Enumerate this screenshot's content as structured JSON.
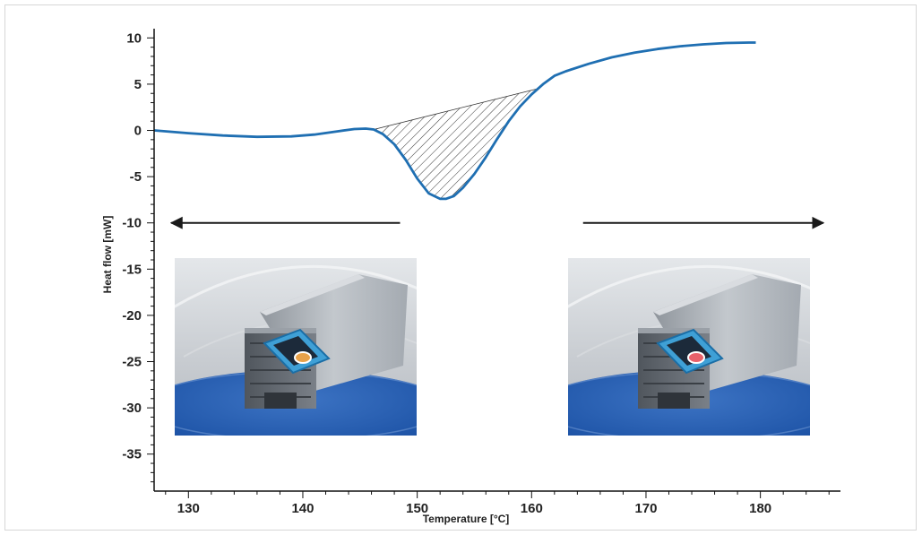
{
  "chart_data": {
    "type": "line",
    "title": "",
    "xlabel": "Temperature [°C]",
    "ylabel": "Heat flow [mW]",
    "xlim": [
      127,
      187
    ],
    "ylim": [
      -39,
      11
    ],
    "x_ticks": [
      130,
      140,
      150,
      160,
      170,
      180
    ],
    "y_ticks": [
      10,
      5,
      0,
      -5,
      -10,
      -15,
      -20,
      -25,
      -30,
      -35
    ],
    "series": [
      {
        "color": "#1f6fb2",
        "x": [
          127,
          130,
          133,
          136,
          139,
          141,
          143,
          144.5,
          145.5,
          146.2,
          147,
          148,
          149,
          150,
          151,
          152,
          152.5,
          153.2,
          154,
          155,
          156,
          157,
          158,
          159,
          160,
          161,
          162,
          163,
          165,
          167,
          169,
          171,
          173,
          175,
          177,
          179,
          179.6
        ],
        "values": [
          0,
          -0.3,
          -0.55,
          -0.7,
          -0.65,
          -0.45,
          -0.1,
          0.15,
          0.2,
          0.1,
          -0.4,
          -1.5,
          -3.2,
          -5.2,
          -6.8,
          -7.4,
          -7.4,
          -7.1,
          -6.2,
          -4.7,
          -2.9,
          -0.9,
          1.0,
          2.6,
          3.9,
          5.0,
          5.9,
          6.4,
          7.2,
          7.9,
          8.4,
          8.8,
          9.1,
          9.3,
          9.45,
          9.5,
          9.5
        ]
      }
    ],
    "shaded_region": {
      "pattern": "hatched",
      "baseline_start": [
        146.2,
        0.1
      ],
      "baseline_end": [
        160.5,
        4.5
      ]
    },
    "annotations": [
      {
        "type": "arrow",
        "direction": "left",
        "from_x": 148.5,
        "to_x": 128.5,
        "y": -10
      },
      {
        "type": "arrow",
        "direction": "right",
        "from_x": 164.5,
        "to_x": 185.5,
        "y": -10
      }
    ]
  },
  "photos": [
    {
      "name": "sample-photo-before",
      "dish_color": "#e8a24a"
    },
    {
      "name": "sample-photo-after",
      "dish_color": "#e8606a"
    }
  ],
  "colors": {
    "curve": "#1f6fb2",
    "axis": "#111111",
    "arrow": "#1a1a1a"
  }
}
